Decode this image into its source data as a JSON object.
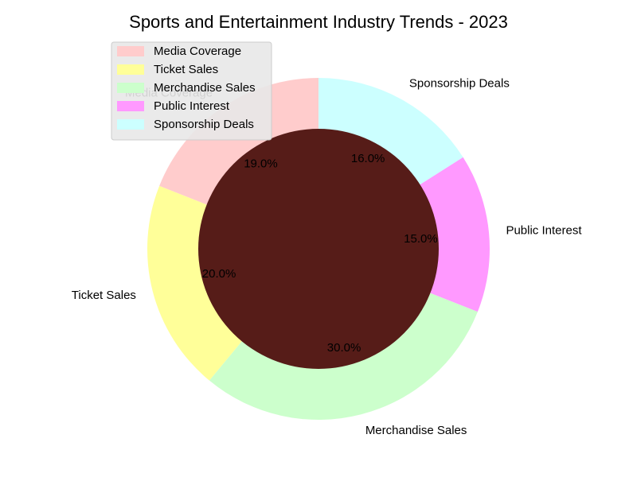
{
  "chart_data": {
    "type": "pie",
    "variant": "donut",
    "title": "Sports and Entertainment Industry Trends - 2023",
    "categories": [
      "Media Coverage",
      "Ticket Sales",
      "Merchandise Sales",
      "Public Interest",
      "Sponsorship Deals"
    ],
    "values": [
      19.0,
      20.0,
      30.0,
      15.0,
      16.0
    ],
    "percent_labels": [
      "19.0%",
      "20.0%",
      "30.0%",
      "15.0%",
      "16.0%"
    ],
    "colors": [
      "#ffcccc",
      "#ffff99",
      "#ccffcc",
      "#ff99ff",
      "#ccffff"
    ],
    "center_color": "#561c18",
    "start_angle_deg": 90,
    "direction": "counterclockwise",
    "legend": {
      "position": "upper-left",
      "entries": [
        "Media Coverage",
        "Ticket Sales",
        "Merchandise Sales",
        "Public Interest",
        "Sponsorship Deals"
      ],
      "background": "#e8e8e8"
    }
  }
}
